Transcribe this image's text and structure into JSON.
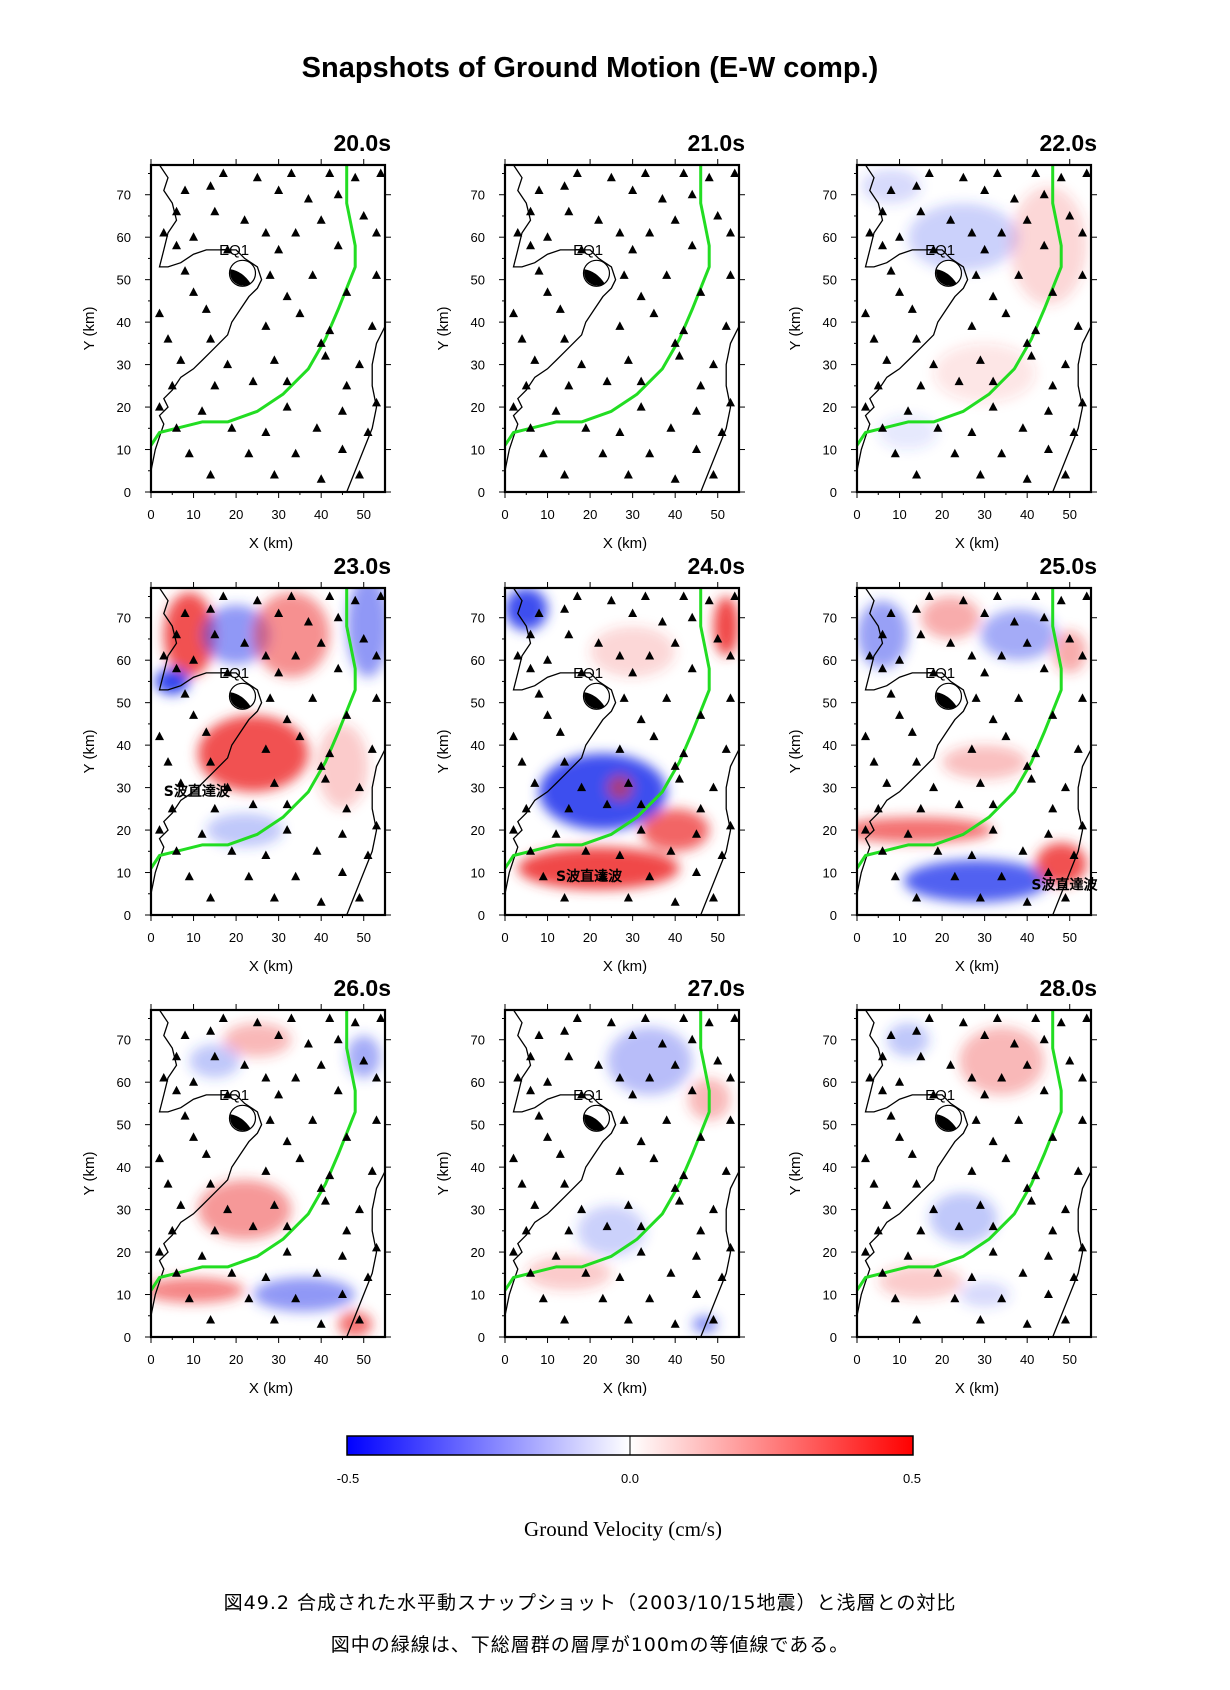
{
  "title": "Snapshots of Ground Motion (E-W comp.)",
  "caption": {
    "line1": "図49.2 合成された水平動スナップショット（2003/10/15地震）と浅層との対比",
    "line2": "図中の緑線は、下総層群の層厚が100mの等値線である。"
  },
  "chart_data": {
    "type": "heatmap",
    "panels": [
      {
        "time": "20.0s",
        "xlabel": "X (km)",
        "ylabel": "Y (km)",
        "annotations": [
          "EQ1"
        ]
      },
      {
        "time": "21.0s",
        "xlabel": "X (km)",
        "ylabel": "Y (km)",
        "annotations": [
          "EQ1"
        ]
      },
      {
        "time": "22.0s",
        "xlabel": "X (km)",
        "ylabel": "Y (km)",
        "annotations": [
          "EQ1"
        ]
      },
      {
        "time": "23.0s",
        "xlabel": "X (km)",
        "ylabel": "Y (km)",
        "annotations": [
          "EQ1",
          "S波直達波"
        ]
      },
      {
        "time": "24.0s",
        "xlabel": "X (km)",
        "ylabel": "Y (km)",
        "annotations": [
          "EQ1",
          "S波直達波"
        ]
      },
      {
        "time": "25.0s",
        "xlabel": "X (km)",
        "ylabel": "Y (km)",
        "annotations": [
          "EQ1",
          "S波直達波"
        ]
      },
      {
        "time": "26.0s",
        "xlabel": "X (km)",
        "ylabel": "Y (km)",
        "annotations": [
          "EQ1"
        ]
      },
      {
        "time": "27.0s",
        "xlabel": "X (km)",
        "ylabel": "Y (km)",
        "annotations": [
          "EQ1"
        ]
      },
      {
        "time": "28.0s",
        "xlabel": "X (km)",
        "ylabel": "Y (km)",
        "annotations": [
          "EQ1"
        ]
      }
    ],
    "xlim": [
      0,
      55
    ],
    "ylim": [
      0,
      77
    ],
    "xticks": [
      0,
      10,
      20,
      30,
      40,
      50
    ],
    "yticks": [
      0,
      10,
      20,
      30,
      40,
      50,
      60,
      70
    ],
    "colorbar": {
      "label": "Ground Velocity (cm/s)",
      "min": -0.5,
      "max": 0.5,
      "ticks": [
        "-0.5",
        "0.0",
        "0.5"
      ],
      "low_color": "#0000ff",
      "mid_color": "#ffffff",
      "high_color": "#ff0000"
    },
    "contour_color": "#22dd22",
    "contour_meaning": "下総層群の層厚が100mの等値線",
    "green_contour_km": [
      [
        0,
        11
      ],
      [
        2,
        14
      ],
      [
        6,
        15
      ],
      [
        12,
        16.5
      ],
      [
        18,
        16.5
      ],
      [
        25,
        19
      ],
      [
        31,
        23
      ],
      [
        37,
        29
      ],
      [
        41,
        36
      ],
      [
        44,
        43
      ],
      [
        46,
        48
      ],
      [
        48,
        53
      ],
      [
        48,
        58
      ],
      [
        47,
        63
      ],
      [
        46,
        68
      ],
      [
        46,
        73
      ],
      [
        46,
        77
      ]
    ],
    "coastline_west_km": [
      [
        0,
        5
      ],
      [
        1,
        10
      ],
      [
        2,
        13
      ],
      [
        3,
        16
      ],
      [
        2,
        18
      ],
      [
        4,
        20
      ],
      [
        3,
        22
      ],
      [
        5,
        24
      ],
      [
        7,
        27
      ],
      [
        10,
        29
      ],
      [
        12,
        31
      ],
      [
        14,
        33
      ],
      [
        16,
        35
      ],
      [
        18,
        37
      ],
      [
        19,
        40
      ],
      [
        21,
        43
      ],
      [
        23,
        46
      ],
      [
        25,
        48
      ],
      [
        26,
        50
      ],
      [
        25,
        53
      ],
      [
        22,
        55
      ],
      [
        20,
        57
      ],
      [
        16,
        57
      ],
      [
        13,
        57
      ],
      [
        10,
        56
      ],
      [
        7,
        54
      ],
      [
        4,
        53
      ],
      [
        2,
        53
      ],
      [
        3,
        57
      ],
      [
        4,
        61
      ],
      [
        6,
        64
      ],
      [
        5,
        68
      ],
      [
        3,
        71
      ],
      [
        4,
        74
      ],
      [
        2,
        77
      ]
    ],
    "coastline_east_km": [
      [
        55,
        39
      ],
      [
        53,
        35
      ],
      [
        52,
        30
      ],
      [
        52,
        25
      ],
      [
        53,
        20
      ],
      [
        52,
        15
      ],
      [
        50,
        10
      ],
      [
        48,
        5
      ],
      [
        46,
        0
      ]
    ],
    "stations_km": [
      [
        17,
        75
      ],
      [
        25,
        74
      ],
      [
        33,
        75
      ],
      [
        42,
        75
      ],
      [
        48,
        74
      ],
      [
        54,
        75
      ],
      [
        8,
        71
      ],
      [
        14,
        72
      ],
      [
        30,
        71
      ],
      [
        37,
        69
      ],
      [
        44,
        70
      ],
      [
        6,
        66
      ],
      [
        15,
        66
      ],
      [
        22,
        64
      ],
      [
        40,
        64
      ],
      [
        50,
        65
      ],
      [
        3,
        61
      ],
      [
        10,
        60
      ],
      [
        27,
        61
      ],
      [
        34,
        61
      ],
      [
        53,
        61
      ],
      [
        6,
        58
      ],
      [
        18,
        57
      ],
      [
        30,
        57
      ],
      [
        44,
        58
      ],
      [
        8,
        52
      ],
      [
        28,
        51
      ],
      [
        38,
        51
      ],
      [
        53,
        51
      ],
      [
        10,
        47
      ],
      [
        32,
        46
      ],
      [
        46,
        47
      ],
      [
        2,
        42
      ],
      [
        13,
        43
      ],
      [
        35,
        42
      ],
      [
        27,
        39
      ],
      [
        42,
        38
      ],
      [
        52,
        39
      ],
      [
        4,
        36
      ],
      [
        14,
        36
      ],
      [
        40,
        35
      ],
      [
        7,
        31
      ],
      [
        18,
        30
      ],
      [
        29,
        31
      ],
      [
        41,
        32
      ],
      [
        49,
        30
      ],
      [
        5,
        25
      ],
      [
        15,
        25
      ],
      [
        24,
        26
      ],
      [
        32,
        26
      ],
      [
        46,
        25
      ],
      [
        2,
        20
      ],
      [
        12,
        19
      ],
      [
        32,
        20
      ],
      [
        45,
        19
      ],
      [
        53,
        21
      ],
      [
        6,
        15
      ],
      [
        19,
        15
      ],
      [
        27,
        14
      ],
      [
        39,
        15
      ],
      [
        51,
        14
      ],
      [
        9,
        9
      ],
      [
        23,
        9
      ],
      [
        34,
        9
      ],
      [
        45,
        10
      ],
      [
        14,
        4
      ],
      [
        29,
        4
      ],
      [
        40,
        3
      ],
      [
        49,
        4
      ]
    ],
    "source_km": [
      21.5,
      51.5
    ]
  }
}
